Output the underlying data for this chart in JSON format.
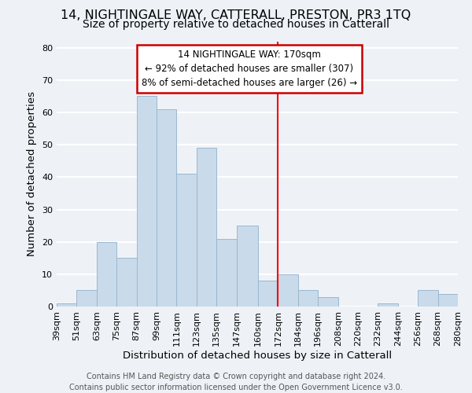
{
  "title": "14, NIGHTINGALE WAY, CATTERALL, PRESTON, PR3 1TQ",
  "subtitle": "Size of property relative to detached houses in Catterall",
  "xlabel": "Distribution of detached houses by size in Catterall",
  "ylabel": "Number of detached properties",
  "footer_lines": [
    "Contains HM Land Registry data © Crown copyright and database right 2024.",
    "Contains public sector information licensed under the Open Government Licence v3.0."
  ],
  "bin_edges": [
    39,
    51,
    63,
    75,
    87,
    99,
    111,
    123,
    135,
    147,
    160,
    172,
    184,
    196,
    208,
    220,
    232,
    244,
    256,
    268,
    280
  ],
  "bar_heights": [
    1,
    5,
    20,
    15,
    65,
    61,
    41,
    49,
    21,
    25,
    8,
    10,
    5,
    3,
    0,
    0,
    1,
    0,
    5,
    4
  ],
  "bar_color": "#c9daea",
  "bar_edge_color": "#9ab8d0",
  "reference_line_x": 172,
  "reference_line_color": "red",
  "annotation_title": "14 NIGHTINGALE WAY: 170sqm",
  "annotation_line1": "← 92% of detached houses are smaller (307)",
  "annotation_line2": "8% of semi-detached houses are larger (26) →",
  "annotation_box_color": "white",
  "annotation_box_edge_color": "#cc0000",
  "ylim": [
    0,
    82
  ],
  "yticks": [
    0,
    10,
    20,
    30,
    40,
    50,
    60,
    70,
    80
  ],
  "tick_labels": [
    "39sqm",
    "51sqm",
    "63sqm",
    "75sqm",
    "87sqm",
    "99sqm",
    "111sqm",
    "123sqm",
    "135sqm",
    "147sqm",
    "160sqm",
    "172sqm",
    "184sqm",
    "196sqm",
    "208sqm",
    "220sqm",
    "232sqm",
    "244sqm",
    "256sqm",
    "268sqm",
    "280sqm"
  ],
  "background_color": "#eef2f7",
  "grid_color": "white",
  "title_fontsize": 11.5,
  "subtitle_fontsize": 10,
  "axis_label_fontsize": 9.5,
  "tick_fontsize": 8,
  "footer_fontsize": 7,
  "annotation_fontsize": 8.5
}
